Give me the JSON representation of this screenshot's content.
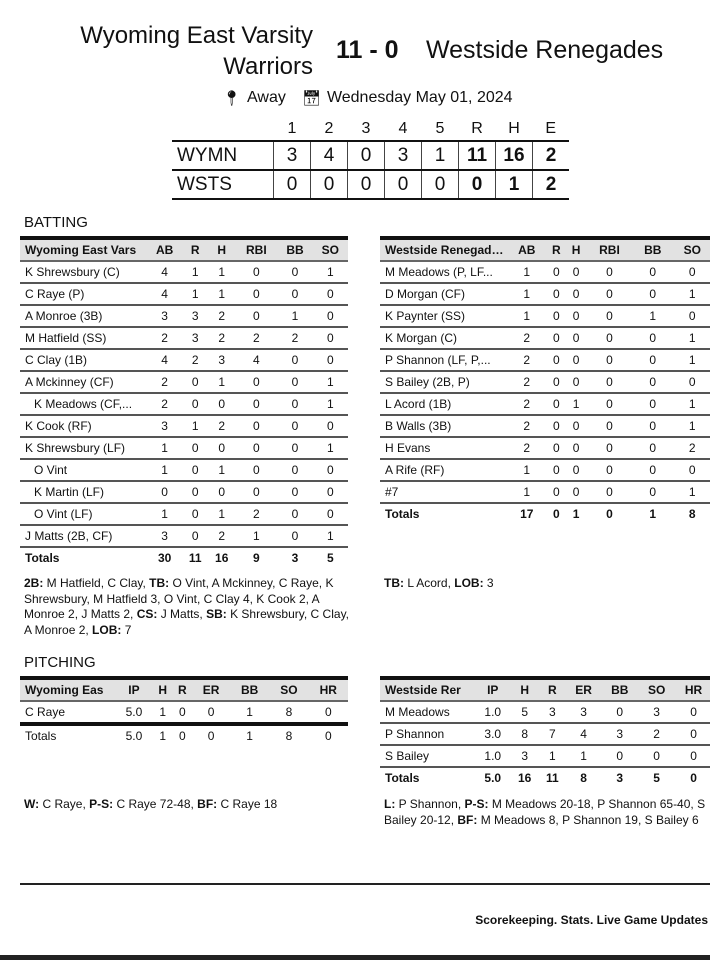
{
  "header": {
    "home_team": "Wyoming East Varsity Warriors",
    "score": "11 - 0",
    "away_team": "Westside Renegades",
    "location": "Away",
    "date": "Wednesday May 01, 2024",
    "icons": {
      "location": "map-pin-icon",
      "date": "calendar-icon"
    }
  },
  "linescore": {
    "columns": [
      "1",
      "2",
      "3",
      "4",
      "5",
      "R",
      "H",
      "E"
    ],
    "rows": [
      {
        "team": "WYMN",
        "values": [
          "3",
          "4",
          "0",
          "3",
          "1",
          "11",
          "16",
          "2"
        ]
      },
      {
        "team": "WSTS",
        "values": [
          "0",
          "0",
          "0",
          "0",
          "0",
          "0",
          "1",
          "2"
        ]
      }
    ]
  },
  "batting": {
    "title": "BATTING",
    "home": {
      "columns": [
        "Wyoming East Vars",
        "AB",
        "R",
        "H",
        "RBI",
        "BB",
        "SO"
      ],
      "rows": [
        [
          "K Shrewsbury (C)",
          "4",
          "1",
          "1",
          "0",
          "0",
          "1"
        ],
        [
          "C Raye (P)",
          "4",
          "1",
          "1",
          "0",
          "0",
          "0"
        ],
        [
          "A Monroe (3B)",
          "3",
          "3",
          "2",
          "0",
          "1",
          "0"
        ],
        [
          "M Hatfield (SS)",
          "2",
          "3",
          "2",
          "2",
          "2",
          "0"
        ],
        [
          "C Clay (1B)",
          "4",
          "2",
          "3",
          "4",
          "0",
          "0"
        ],
        [
          "A Mckinney (CF)",
          "2",
          "0",
          "1",
          "0",
          "0",
          "1"
        ],
        [
          "K Meadows (CF,...",
          "2",
          "0",
          "0",
          "0",
          "0",
          "1"
        ],
        [
          "K Cook (RF)",
          "3",
          "1",
          "2",
          "0",
          "0",
          "0"
        ],
        [
          "K Shrewsbury (LF)",
          "1",
          "0",
          "0",
          "0",
          "0",
          "1"
        ],
        [
          "O Vint",
          "1",
          "0",
          "1",
          "0",
          "0",
          "0"
        ],
        [
          "K Martin (LF)",
          "0",
          "0",
          "0",
          "0",
          "0",
          "0"
        ],
        [
          "O Vint (LF)",
          "1",
          "0",
          "1",
          "2",
          "0",
          "0"
        ],
        [
          "J Matts (2B, CF)",
          "3",
          "0",
          "2",
          "1",
          "0",
          "1"
        ]
      ],
      "indented": [
        6,
        9,
        10,
        11
      ],
      "totals": [
        "Totals",
        "30",
        "11",
        "16",
        "9",
        "3",
        "5"
      ],
      "notes": [
        [
          "2B:",
          " M Hatfield, C Clay, "
        ],
        [
          "TB:",
          " O Vint, A Mckinney, C Raye, K Shrewsbury, M Hatfield 3, O Vint, C Clay 4, K Cook 2, A Monroe 2, J Matts 2, "
        ],
        [
          "CS:",
          " J Matts, "
        ],
        [
          "SB:",
          " K Shrewsbury, C Clay, A Monroe 2, "
        ],
        [
          "LOB:",
          " 7"
        ]
      ]
    },
    "away": {
      "columns": [
        "Westside Renegad…",
        "AB",
        "R",
        "H",
        "RBI",
        "BB",
        "SO"
      ],
      "rows": [
        [
          "M Meadows (P, LF...",
          "1",
          "0",
          "0",
          "0",
          "0",
          "0"
        ],
        [
          "D Morgan (CF)",
          "1",
          "0",
          "0",
          "0",
          "0",
          "1"
        ],
        [
          "K Paynter (SS)",
          "1",
          "0",
          "0",
          "0",
          "1",
          "0"
        ],
        [
          "K Morgan (C)",
          "2",
          "0",
          "0",
          "0",
          "0",
          "1"
        ],
        [
          "P Shannon (LF, P,...",
          "2",
          "0",
          "0",
          "0",
          "0",
          "1"
        ],
        [
          "S Bailey (2B, P)",
          "2",
          "0",
          "0",
          "0",
          "0",
          "0"
        ],
        [
          "L Acord (1B)",
          "2",
          "0",
          "1",
          "0",
          "0",
          "1"
        ],
        [
          "B Walls (3B)",
          "2",
          "0",
          "0",
          "0",
          "0",
          "1"
        ],
        [
          "H Evans",
          "2",
          "0",
          "0",
          "0",
          "0",
          "2"
        ],
        [
          "A Rife (RF)",
          "1",
          "0",
          "0",
          "0",
          "0",
          "0"
        ],
        [
          "#7",
          "1",
          "0",
          "0",
          "0",
          "0",
          "1"
        ]
      ],
      "indented": [],
      "totals": [
        "Totals",
        "17",
        "0",
        "1",
        "0",
        "1",
        "8"
      ],
      "notes": [
        [
          "TB:",
          " L Acord, "
        ],
        [
          "LOB:",
          " 3"
        ]
      ]
    }
  },
  "pitching": {
    "title": "PITCHING",
    "home": {
      "columns": [
        "Wyoming Eas",
        "IP",
        "H",
        "R",
        "ER",
        "BB",
        "SO",
        "HR"
      ],
      "rows": [
        [
          "C Raye",
          "5.0",
          "1",
          "0",
          "0",
          "1",
          "8",
          "0"
        ]
      ],
      "indented": [],
      "totals": [
        "Totals",
        "5.0",
        "1",
        "0",
        "0",
        "1",
        "8",
        "0"
      ],
      "totals_bold": false,
      "notes": [
        [
          "W:",
          " C Raye, "
        ],
        [
          "P-S:",
          " C Raye 72-48, "
        ],
        [
          "BF:",
          " C Raye 18"
        ]
      ]
    },
    "away": {
      "columns": [
        "Westside Rer",
        "IP",
        "H",
        "R",
        "ER",
        "BB",
        "SO",
        "HR"
      ],
      "rows": [
        [
          "M Meadows",
          "1.0",
          "5",
          "3",
          "3",
          "0",
          "3",
          "0"
        ],
        [
          "P Shannon",
          "3.0",
          "8",
          "7",
          "4",
          "3",
          "2",
          "0"
        ],
        [
          "S Bailey",
          "1.0",
          "3",
          "1",
          "1",
          "0",
          "0",
          "0"
        ]
      ],
      "indented": [],
      "totals": [
        "Totals",
        "5.0",
        "16",
        "11",
        "8",
        "3",
        "5",
        "0"
      ],
      "totals_bold": true,
      "notes": [
        [
          "L:",
          " P Shannon, "
        ],
        [
          "P-S:",
          " M Meadows 20-18, P Shannon 65-40, S Bailey 20-12, "
        ],
        [
          "BF:",
          " M Meadows 8, P Shannon 19, S Bailey 6"
        ]
      ]
    }
  },
  "footer": {
    "tagline": "Scorekeeping. Stats. Live Game Updates"
  }
}
